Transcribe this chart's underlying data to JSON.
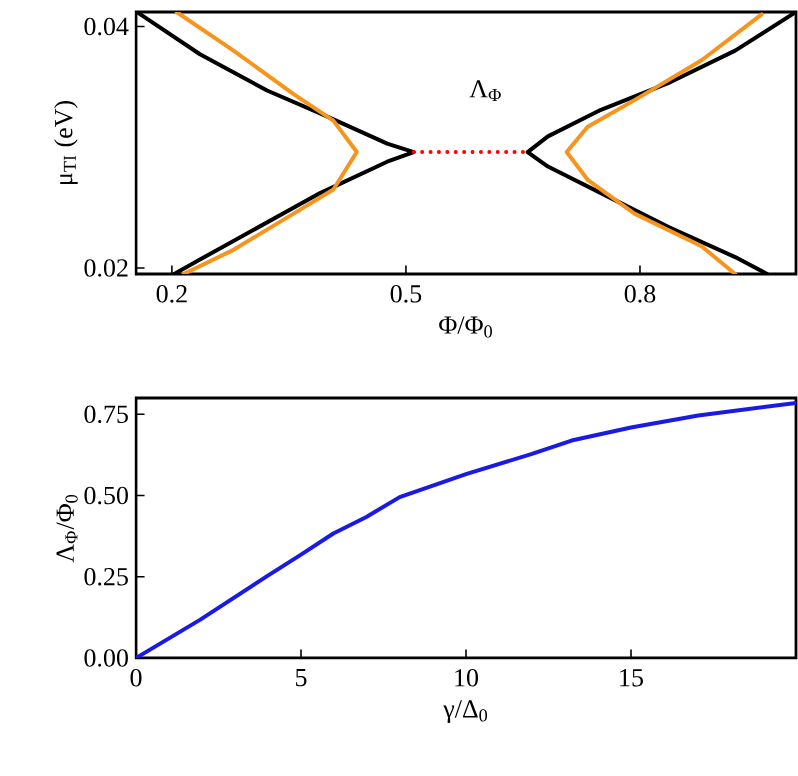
{
  "chart_data": [
    {
      "type": "line",
      "xlabel": "Φ/Φ$_{0}$",
      "ylabel": "μ$_{TI}$ (eV)",
      "xlim": [
        0.154,
        1.0
      ],
      "ylim": [
        0.0195,
        0.0412
      ],
      "xticks": [
        0.2,
        0.5,
        0.8
      ],
      "yticks": [
        0.02,
        0.04
      ],
      "annotations": [
        "Λ$_{Φ}$"
      ],
      "series": [
        {
          "color": "#000000",
          "x": [
            0.155,
            0.236,
            0.322,
            0.39,
            0.476,
            0.51,
            0.476,
            0.39,
            0.236,
            0.203
          ],
          "values": [
            0.0412,
            0.0377,
            0.0347,
            0.0328,
            0.0303,
            0.0296,
            0.0288,
            0.0262,
            0.0207,
            0.0195
          ]
        },
        {
          "color": "#f7941d",
          "x": [
            0.206,
            0.279,
            0.356,
            0.407,
            0.437,
            0.407,
            0.356,
            0.279,
            0.215
          ],
          "values": [
            0.0412,
            0.038,
            0.0344,
            0.0322,
            0.0296,
            0.0265,
            0.0245,
            0.0215,
            0.0195
          ]
        },
        {
          "color": "#000000",
          "x": [
            1.0,
            0.922,
            0.836,
            0.75,
            0.682,
            0.656,
            0.682,
            0.75,
            0.836,
            0.922,
            0.963
          ],
          "values": [
            0.0412,
            0.038,
            0.0353,
            0.0331,
            0.0309,
            0.0296,
            0.0284,
            0.0262,
            0.0234,
            0.0209,
            0.0195
          ]
        },
        {
          "color": "#f7941d",
          "x": [
            0.956,
            0.879,
            0.793,
            0.733,
            0.706,
            0.733,
            0.793,
            0.879,
            0.922
          ],
          "values": [
            0.041,
            0.0372,
            0.0339,
            0.0317,
            0.0296,
            0.0273,
            0.0245,
            0.0218,
            0.0195
          ]
        },
        {
          "color": "#ff0000",
          "line_style": "dotted",
          "x": [
            0.51,
            0.656
          ],
          "values": [
            0.0296,
            0.0296
          ]
        }
      ]
    },
    {
      "type": "line",
      "xlabel": "γ/Δ$_{0}$",
      "ylabel": "Λ$_{Φ}$/Φ$_{0}$",
      "xlim": [
        0,
        20
      ],
      "ylim": [
        0,
        0.8
      ],
      "xticks": [
        0,
        5,
        10,
        15
      ],
      "yticks": [
        {
          "value": 0,
          "label": "0.00"
        },
        {
          "value": 0.25,
          "label": "0.25"
        },
        {
          "value": 0.5,
          "label": "0.50"
        },
        {
          "value": 0.75,
          "label": "0.75"
        }
      ],
      "series": [
        {
          "color": "#1a1ae6",
          "x": [
            0,
            1.95,
            3.96,
            5,
            5.98,
            6.98,
            7.99,
            10,
            12,
            13.2,
            15,
            17.04,
            20
          ],
          "values": [
            0,
            0.118,
            0.251,
            0.318,
            0.383,
            0.434,
            0.495,
            0.566,
            0.628,
            0.669,
            0.709,
            0.746,
            0.785
          ]
        }
      ]
    }
  ]
}
